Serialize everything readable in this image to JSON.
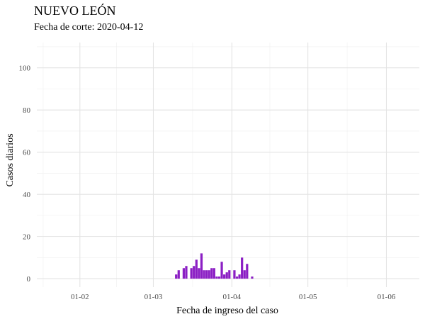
{
  "chart_data": {
    "type": "bar",
    "title": "NUEVO LEÓN",
    "subtitle": "Fecha de corte: 2020-04-12",
    "xlabel": "Fecha de ingreso del caso",
    "ylabel": "Casos diarios",
    "bar_color": "#8B1FC4",
    "grid": true,
    "legend": "none",
    "xlim": [
      "2020-01-15",
      "2020-06-14"
    ],
    "ylim": [
      -4,
      112
    ],
    "y_ticks": [
      0,
      20,
      40,
      60,
      80,
      100
    ],
    "y_tick_labels": [
      "0",
      "20",
      "40",
      "60",
      "80",
      "100"
    ],
    "x_ticks": [
      "2020-02-01",
      "2020-03-01",
      "2020-04-01",
      "2020-05-01",
      "2020-06-01"
    ],
    "x_tick_labels": [
      "01-02",
      "01-03",
      "01-04",
      "01-05",
      "01-06"
    ],
    "x": [
      "2020-03-10",
      "2020-03-11",
      "2020-03-12",
      "2020-03-13",
      "2020-03-14",
      "2020-03-15",
      "2020-03-16",
      "2020-03-17",
      "2020-03-18",
      "2020-03-19",
      "2020-03-20",
      "2020-03-21",
      "2020-03-22",
      "2020-03-23",
      "2020-03-24",
      "2020-03-25",
      "2020-03-26",
      "2020-03-27",
      "2020-03-28",
      "2020-03-29",
      "2020-03-30",
      "2020-03-31",
      "2020-04-01",
      "2020-04-02",
      "2020-04-03",
      "2020-04-04",
      "2020-04-05",
      "2020-04-06",
      "2020-04-07",
      "2020-04-08",
      "2020-04-09",
      "2020-04-10"
    ],
    "values": [
      2,
      4,
      0,
      5,
      6,
      0,
      5,
      6,
      9,
      5,
      12,
      4,
      4,
      4,
      5,
      5,
      1,
      1,
      8,
      2,
      3,
      4,
      0,
      4,
      1,
      2,
      10,
      4,
      7,
      0,
      1,
      0
    ]
  }
}
